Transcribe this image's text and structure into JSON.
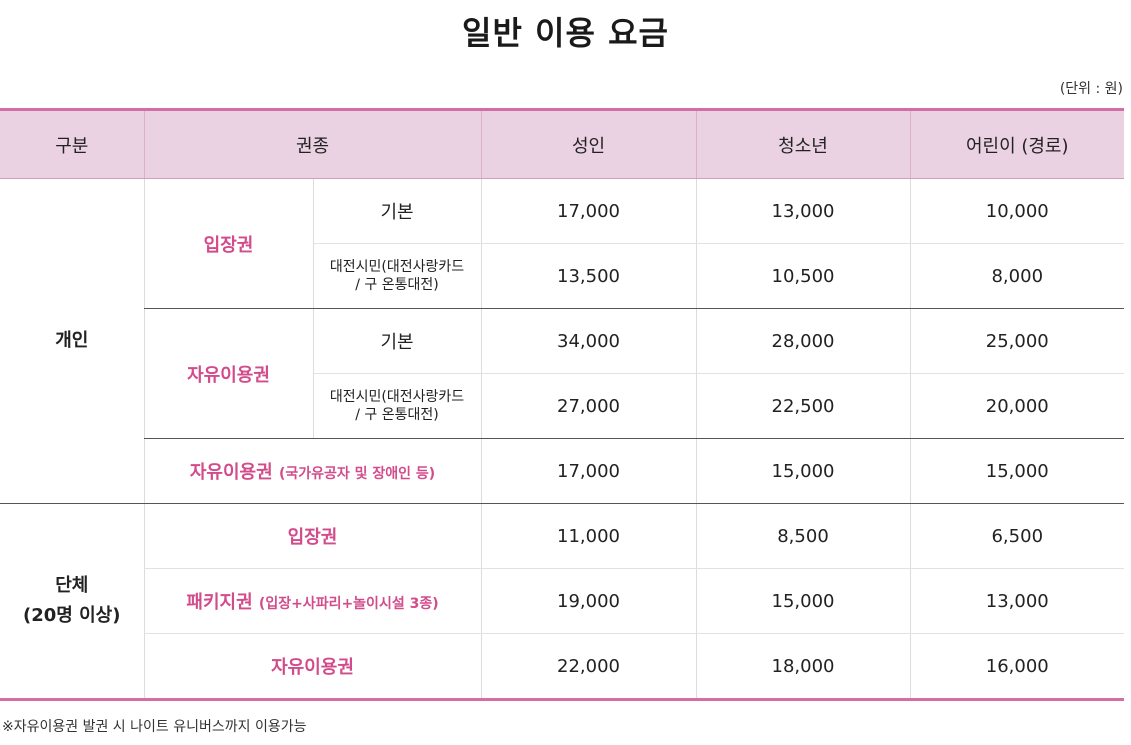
{
  "title": "일반 이용 요금",
  "unit_note": "(단위 : 원)",
  "headers": [
    "구분",
    "권종",
    "성인",
    "청소년",
    "어린이 (경로)"
  ],
  "groups": {
    "individual": "개인",
    "group_line1": "단체",
    "group_line2": "(20명 이상)"
  },
  "rows": {
    "admission": {
      "label": "입장권",
      "basic": {
        "label": "기본",
        "adult": "17,000",
        "youth": "13,000",
        "child": "10,000"
      },
      "citizen": {
        "label_line1": "대전시민(대전사랑카드",
        "label_line2": "/ 구 온통대전)",
        "adult": "13,500",
        "youth": "10,500",
        "child": "8,000"
      }
    },
    "freepass": {
      "label": "자유이용권",
      "basic": {
        "label": "기본",
        "adult": "34,000",
        "youth": "28,000",
        "child": "25,000"
      },
      "citizen": {
        "label_line1": "대전시민(대전사랑카드",
        "label_line2": "/ 구 온통대전)",
        "adult": "27,000",
        "youth": "22,500",
        "child": "20,000"
      }
    },
    "merit": {
      "label": "자유이용권",
      "sub": "(국가유공자 및 장애인 등)",
      "adult": "17,000",
      "youth": "15,000",
      "child": "15,000"
    },
    "group_admission": {
      "label": "입장권",
      "adult": "11,000",
      "youth": "8,500",
      "child": "6,500"
    },
    "group_package": {
      "label": "패키지권",
      "sub": "(입장+사파리+놀이시설 3종)",
      "adult": "19,000",
      "youth": "15,000",
      "child": "13,000"
    },
    "group_freepass": {
      "label": "자유이용권",
      "adult": "22,000",
      "youth": "18,000",
      "child": "16,000"
    }
  },
  "footnote": "※자유이용권 발권 시 나이트 유니버스까지 이용가능",
  "colors": {
    "accent": "#d24c8c",
    "header_bg": "#ead2e3",
    "border": "#d36ea4"
  }
}
